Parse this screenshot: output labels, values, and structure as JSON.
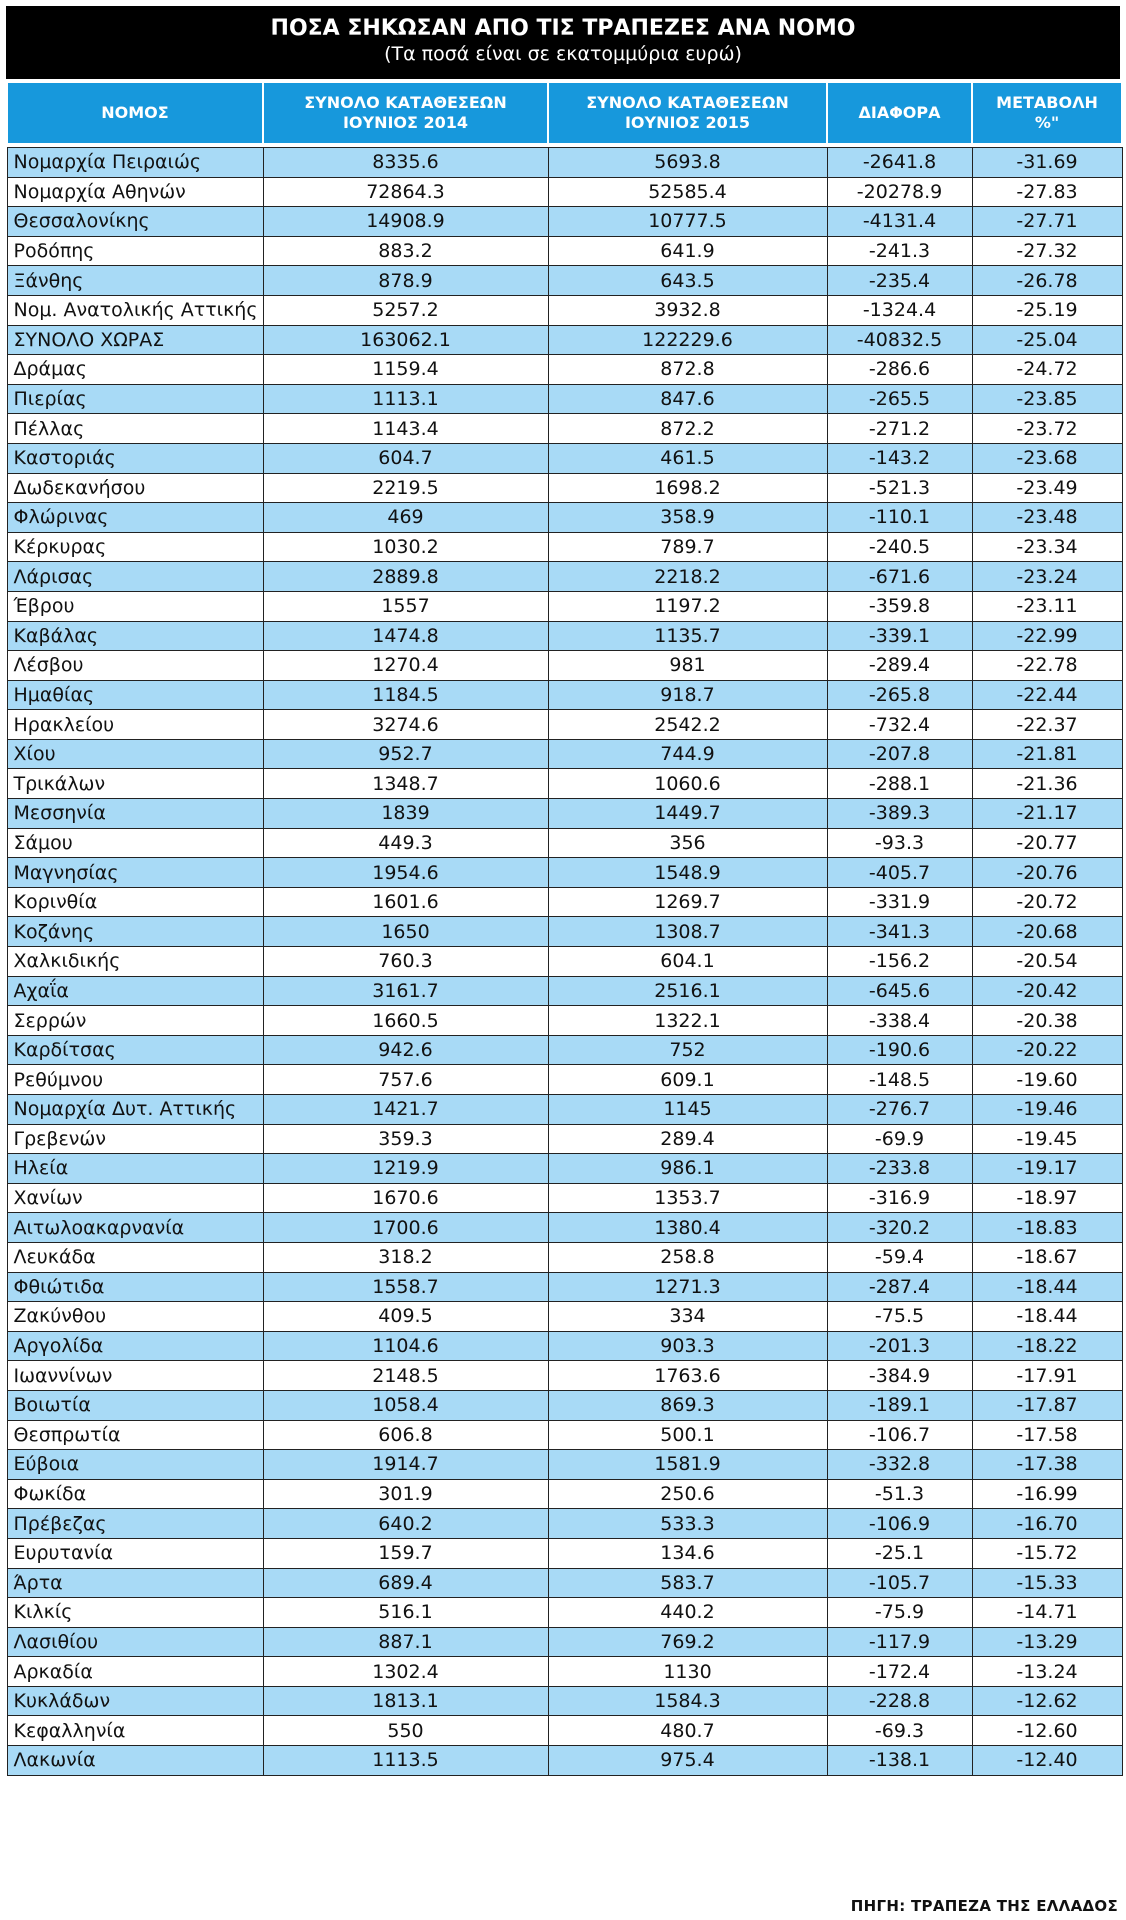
{
  "title": "ΠΟΣΑ ΣΗΚΩΣΑΝ ΑΠΟ ΤΙΣ ΤΡΑΠΕΖΕΣ ΑΝΑ ΝΟΜΟ",
  "subtitle": "(Τα ποσά είναι σε εκατομμύρια ευρώ)",
  "colors": {
    "header_bg": "#1798dc",
    "row_highlight": "#a8daf6",
    "title_bg": "#000000"
  },
  "headers": [
    [
      "ΝΟΜΟΣ"
    ],
    [
      "ΣΥΝΟΛΟ ΚΑΤΑΘΕΣΕΩΝ",
      "ΙΟΥΝΙΟΣ 2014"
    ],
    [
      "ΣΥΝΟΛΟ ΚΑΤΑΘΕΣΕΩΝ",
      "ΙΟΥΝΙΟΣ 2015"
    ],
    [
      "ΔΙΑΦΟΡΑ"
    ],
    [
      "ΜΕΤΑΒΟΛΗ",
      "%\""
    ]
  ],
  "rows": [
    [
      "Νομαρχία Πειραιώς",
      "8335.6",
      "5693.8",
      "-2641.8",
      "-31.69"
    ],
    [
      "Νομαρχία Αθηνών",
      "72864.3",
      "52585.4",
      "-20278.9",
      "-27.83"
    ],
    [
      "Θεσσαλονίκης",
      "14908.9",
      "10777.5",
      "-4131.4",
      "-27.71"
    ],
    [
      "Ροδόπης",
      "883.2",
      "641.9",
      "-241.3",
      "-27.32"
    ],
    [
      "Ξάνθης",
      "878.9",
      "643.5",
      "-235.4",
      "-26.78"
    ],
    [
      "Νομ. Ανατολικής Αττικής",
      "5257.2",
      "3932.8",
      "-1324.4",
      "-25.19"
    ],
    [
      "ΣΥΝΟΛΟ ΧΩΡΑΣ",
      "163062.1",
      "122229.6",
      "-40832.5",
      "-25.04"
    ],
    [
      "Δράμας",
      "1159.4",
      "872.8",
      "-286.6",
      "-24.72"
    ],
    [
      "Πιερίας",
      "1113.1",
      "847.6",
      "-265.5",
      "-23.85"
    ],
    [
      "Πέλλας",
      "1143.4",
      "872.2",
      "-271.2",
      "-23.72"
    ],
    [
      "Καστοριάς",
      "604.7",
      "461.5",
      "-143.2",
      "-23.68"
    ],
    [
      "Δωδεκανήσου",
      "2219.5",
      "1698.2",
      "-521.3",
      "-23.49"
    ],
    [
      "Φλώρινας",
      "469",
      "358.9",
      "-110.1",
      "-23.48"
    ],
    [
      "Κέρκυρας",
      "1030.2",
      "789.7",
      "-240.5",
      "-23.34"
    ],
    [
      "Λάρισας",
      "2889.8",
      "2218.2",
      "-671.6",
      "-23.24"
    ],
    [
      "Έβρου",
      "1557",
      "1197.2",
      "-359.8",
      "-23.11"
    ],
    [
      "Καβάλας",
      "1474.8",
      "1135.7",
      "-339.1",
      "-22.99"
    ],
    [
      "Λέσβου",
      "1270.4",
      "981",
      "-289.4",
      "-22.78"
    ],
    [
      "Ημαθίας",
      "1184.5",
      "918.7",
      "-265.8",
      "-22.44"
    ],
    [
      "Ηρακλείου",
      "3274.6",
      "2542.2",
      "-732.4",
      "-22.37"
    ],
    [
      "Χίου",
      "952.7",
      "744.9",
      "-207.8",
      "-21.81"
    ],
    [
      "Τρικάλων",
      "1348.7",
      "1060.6",
      "-288.1",
      "-21.36"
    ],
    [
      "Μεσσηνία",
      "1839",
      "1449.7",
      "-389.3",
      "-21.17"
    ],
    [
      "Σάμου",
      "449.3",
      "356",
      "-93.3",
      "-20.77"
    ],
    [
      "Μαγνησίας",
      "1954.6",
      "1548.9",
      "-405.7",
      "-20.76"
    ],
    [
      "Κορινθία",
      "1601.6",
      "1269.7",
      "-331.9",
      "-20.72"
    ],
    [
      "Κοζάνης",
      "1650",
      "1308.7",
      "-341.3",
      "-20.68"
    ],
    [
      "Χαλκιδικής",
      "760.3",
      "604.1",
      "-156.2",
      "-20.54"
    ],
    [
      "Αχαΐα",
      "3161.7",
      "2516.1",
      "-645.6",
      "-20.42"
    ],
    [
      "Σερρών",
      "1660.5",
      "1322.1",
      "-338.4",
      "-20.38"
    ],
    [
      "Καρδίτσας",
      "942.6",
      "752",
      "-190.6",
      "-20.22"
    ],
    [
      "Ρεθύμνου",
      "757.6",
      "609.1",
      "-148.5",
      "-19.60"
    ],
    [
      "Νομαρχία Δυτ. Αττικής",
      "1421.7",
      "1145",
      "-276.7",
      "-19.46"
    ],
    [
      "Γρεβενών",
      "359.3",
      "289.4",
      "-69.9",
      "-19.45"
    ],
    [
      "Ηλεία",
      "1219.9",
      "986.1",
      "-233.8",
      "-19.17"
    ],
    [
      "Χανίων",
      "1670.6",
      "1353.7",
      "-316.9",
      "-18.97"
    ],
    [
      "Αιτωλοακαρνανία",
      "1700.6",
      "1380.4",
      "-320.2",
      "-18.83"
    ],
    [
      "Λευκάδα",
      "318.2",
      "258.8",
      "-59.4",
      "-18.67"
    ],
    [
      "Φθιώτιδα",
      "1558.7",
      "1271.3",
      "-287.4",
      "-18.44"
    ],
    [
      "Ζακύνθου",
      "409.5",
      "334",
      "-75.5",
      "-18.44"
    ],
    [
      "Αργολίδα",
      "1104.6",
      "903.3",
      "-201.3",
      "-18.22"
    ],
    [
      "Ιωαννίνων",
      "2148.5",
      "1763.6",
      "-384.9",
      "-17.91"
    ],
    [
      "Βοιωτία",
      "1058.4",
      "869.3",
      "-189.1",
      "-17.87"
    ],
    [
      "Θεσπρωτία",
      "606.8",
      "500.1",
      "-106.7",
      "-17.58"
    ],
    [
      "Εύβοια",
      "1914.7",
      "1581.9",
      "-332.8",
      "-17.38"
    ],
    [
      "Φωκίδα",
      "301.9",
      "250.6",
      "-51.3",
      "-16.99"
    ],
    [
      "Πρέβεζας",
      "640.2",
      "533.3",
      "-106.9",
      "-16.70"
    ],
    [
      "Ευρυτανία",
      "159.7",
      "134.6",
      "-25.1",
      "-15.72"
    ],
    [
      "Άρτα",
      "689.4",
      "583.7",
      "-105.7",
      "-15.33"
    ],
    [
      "Κιλκίς",
      "516.1",
      "440.2",
      "-75.9",
      "-14.71"
    ],
    [
      "Λασιθίου",
      "887.1",
      "769.2",
      "-117.9",
      "-13.29"
    ],
    [
      "Αρκαδία",
      "1302.4",
      "1130",
      "-172.4",
      "-13.24"
    ],
    [
      "Κυκλάδων",
      "1813.1",
      "1584.3",
      "-228.8",
      "-12.62"
    ],
    [
      "Κεφαλληνία",
      "550",
      "480.7",
      "-69.3",
      "-12.60"
    ],
    [
      "Λακωνία",
      "1113.5",
      "975.4",
      "-138.1",
      "-12.40"
    ]
  ],
  "source": "ΠΗΓΗ: ΤΡΑΠΕΖΑ ΤΗΣ ΕΛΛΑΔΟΣ"
}
